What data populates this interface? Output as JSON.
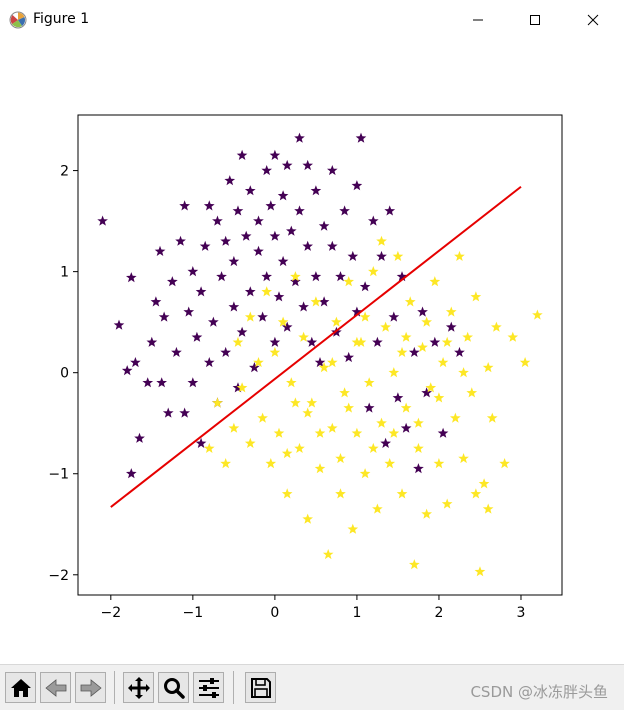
{
  "window": {
    "title": "Figure 1",
    "minimize_icon": "minimize-icon",
    "maximize_icon": "maximize-icon",
    "close_icon": "close-icon"
  },
  "toolbar": {
    "buttons": [
      {
        "name": "home-button",
        "icon": "home-icon"
      },
      {
        "name": "back-button",
        "icon": "back-arrow-icon"
      },
      {
        "name": "forward-button",
        "icon": "forward-arrow-icon"
      },
      {
        "name": "pan-button",
        "icon": "move-icon"
      },
      {
        "name": "zoom-button",
        "icon": "magnifier-icon"
      },
      {
        "name": "configure-subplots-button",
        "icon": "sliders-icon"
      },
      {
        "name": "save-button",
        "icon": "floppy-disk-icon"
      }
    ],
    "watermark": "CSDN @冰冻胖头鱼"
  },
  "chart_data": {
    "type": "scatter",
    "title": "",
    "xlabel": "",
    "ylabel": "",
    "xlim": [
      -2.4,
      3.5
    ],
    "ylim": [
      -2.2,
      2.55
    ],
    "xticks": [
      -2,
      -1,
      0,
      1,
      2,
      3
    ],
    "yticks": [
      -2,
      -1,
      0,
      1,
      2
    ],
    "grid": false,
    "legend": "none",
    "marker": "star",
    "colors": {
      "class0": "#440154",
      "class1": "#fde725",
      "line": "#e60000"
    },
    "boundary_line": {
      "x": [
        -2.0,
        3.0
      ],
      "y": [
        -1.33,
        1.84
      ]
    },
    "series": [
      {
        "class": 0,
        "points": [
          [
            -2.1,
            1.5
          ],
          [
            -1.75,
            0.94
          ],
          [
            -1.9,
            0.47
          ],
          [
            -1.8,
            0.02
          ],
          [
            -1.7,
            0.1
          ],
          [
            -1.65,
            -0.65
          ],
          [
            -1.75,
            -1.0
          ],
          [
            -1.55,
            -0.1
          ],
          [
            -1.5,
            0.3
          ],
          [
            -1.45,
            0.7
          ],
          [
            -1.4,
            1.2
          ],
          [
            -1.38,
            -0.1
          ],
          [
            -1.35,
            0.55
          ],
          [
            -1.3,
            -0.4
          ],
          [
            -1.25,
            0.9
          ],
          [
            -1.2,
            0.2
          ],
          [
            -1.15,
            1.3
          ],
          [
            -1.1,
            -0.4
          ],
          [
            -1.1,
            1.65
          ],
          [
            -1.05,
            0.6
          ],
          [
            -1.0,
            -0.1
          ],
          [
            -1.0,
            1.0
          ],
          [
            -0.95,
            0.35
          ],
          [
            -0.9,
            -0.7
          ],
          [
            -0.9,
            0.8
          ],
          [
            -0.85,
            1.25
          ],
          [
            -0.8,
            1.65
          ],
          [
            -0.8,
            0.1
          ],
          [
            -0.75,
            0.5
          ],
          [
            -0.7,
            1.5
          ],
          [
            -0.7,
            -0.3
          ],
          [
            -0.65,
            0.95
          ],
          [
            -0.6,
            0.2
          ],
          [
            -0.6,
            1.3
          ],
          [
            -0.55,
            1.9
          ],
          [
            -0.5,
            0.65
          ],
          [
            -0.5,
            1.1
          ],
          [
            -0.45,
            -0.15
          ],
          [
            -0.45,
            1.6
          ],
          [
            -0.4,
            0.4
          ],
          [
            -0.4,
            2.15
          ],
          [
            -0.35,
            1.35
          ],
          [
            -0.3,
            0.8
          ],
          [
            -0.3,
            1.8
          ],
          [
            -0.25,
            0.05
          ],
          [
            -0.2,
            1.2
          ],
          [
            -0.2,
            1.5
          ],
          [
            -0.15,
            0.55
          ],
          [
            -0.1,
            2.0
          ],
          [
            -0.1,
            0.95
          ],
          [
            -0.05,
            1.65
          ],
          [
            0.0,
            0.3
          ],
          [
            0.0,
            1.35
          ],
          [
            0.0,
            2.15
          ],
          [
            0.05,
            0.75
          ],
          [
            0.1,
            1.1
          ],
          [
            0.1,
            1.75
          ],
          [
            0.15,
            0.45
          ],
          [
            0.15,
            2.05
          ],
          [
            0.2,
            1.4
          ],
          [
            0.25,
            0.9
          ],
          [
            0.3,
            1.6
          ],
          [
            0.3,
            2.32
          ],
          [
            0.35,
            0.65
          ],
          [
            0.4,
            1.25
          ],
          [
            0.4,
            2.05
          ],
          [
            0.45,
            0.3
          ],
          [
            0.5,
            1.8
          ],
          [
            0.5,
            0.95
          ],
          [
            0.55,
            0.1
          ],
          [
            0.6,
            1.45
          ],
          [
            0.6,
            0.7
          ],
          [
            0.7,
            1.25
          ],
          [
            0.7,
            2.0
          ],
          [
            0.75,
            0.4
          ],
          [
            0.8,
            0.95
          ],
          [
            0.85,
            1.6
          ],
          [
            0.9,
            0.15
          ],
          [
            0.95,
            1.15
          ],
          [
            1.0,
            0.6
          ],
          [
            1.0,
            1.85
          ],
          [
            1.05,
            2.32
          ],
          [
            1.1,
            0.85
          ],
          [
            1.15,
            -0.35
          ],
          [
            1.2,
            1.5
          ],
          [
            1.25,
            0.3
          ],
          [
            1.3,
            1.15
          ],
          [
            1.35,
            -0.7
          ],
          [
            1.4,
            1.6
          ],
          [
            1.45,
            0.55
          ],
          [
            1.5,
            -0.25
          ],
          [
            1.55,
            0.95
          ],
          [
            1.6,
            -0.55
          ],
          [
            1.7,
            0.2
          ],
          [
            1.75,
            -0.95
          ],
          [
            1.8,
            0.6
          ],
          [
            1.85,
            -0.2
          ],
          [
            1.95,
            0.3
          ],
          [
            2.05,
            -0.6
          ],
          [
            2.15,
            0.45
          ],
          [
            2.25,
            0.2
          ]
        ]
      },
      {
        "class": 1,
        "points": [
          [
            -0.8,
            -0.75
          ],
          [
            -0.7,
            -0.3
          ],
          [
            -0.6,
            -0.9
          ],
          [
            -0.5,
            -0.55
          ],
          [
            -0.45,
            0.3
          ],
          [
            -0.4,
            -0.15
          ],
          [
            -0.3,
            0.55
          ],
          [
            -0.3,
            -0.7
          ],
          [
            -0.2,
            0.1
          ],
          [
            -0.15,
            -0.45
          ],
          [
            -0.1,
            0.8
          ],
          [
            -0.05,
            -0.9
          ],
          [
            0.0,
            0.2
          ],
          [
            0.05,
            -0.6
          ],
          [
            0.1,
            0.5
          ],
          [
            0.15,
            -1.2
          ],
          [
            0.2,
            -0.1
          ],
          [
            0.25,
            0.95
          ],
          [
            0.3,
            -0.75
          ],
          [
            0.35,
            0.35
          ],
          [
            0.4,
            -1.45
          ],
          [
            0.45,
            -0.3
          ],
          [
            0.5,
            0.7
          ],
          [
            0.55,
            -0.95
          ],
          [
            0.6,
            0.05
          ],
          [
            0.65,
            -1.8
          ],
          [
            0.7,
            -0.55
          ],
          [
            0.75,
            0.5
          ],
          [
            0.8,
            -1.2
          ],
          [
            0.85,
            -0.2
          ],
          [
            0.9,
            0.9
          ],
          [
            0.95,
            -1.55
          ],
          [
            1.0,
            -0.6
          ],
          [
            1.05,
            0.3
          ],
          [
            1.1,
            -1.0
          ],
          [
            1.15,
            -0.1
          ],
          [
            1.2,
            1.0
          ],
          [
            1.25,
            -1.35
          ],
          [
            1.3,
            -0.5
          ],
          [
            1.35,
            0.45
          ],
          [
            1.4,
            -0.9
          ],
          [
            1.45,
            0.0
          ],
          [
            1.5,
            1.15
          ],
          [
            1.55,
            -1.2
          ],
          [
            1.6,
            -0.35
          ],
          [
            1.65,
            0.7
          ],
          [
            1.7,
            -1.9
          ],
          [
            1.75,
            -0.75
          ],
          [
            1.8,
            0.25
          ],
          [
            1.85,
            -1.4
          ],
          [
            1.9,
            -0.15
          ],
          [
            1.95,
            0.9
          ],
          [
            2.0,
            -0.9
          ],
          [
            2.05,
            0.1
          ],
          [
            2.1,
            -1.3
          ],
          [
            2.15,
            0.6
          ],
          [
            2.2,
            -0.45
          ],
          [
            2.25,
            1.15
          ],
          [
            2.3,
            -0.85
          ],
          [
            2.35,
            0.35
          ],
          [
            2.4,
            -0.2
          ],
          [
            2.45,
            0.75
          ],
          [
            2.5,
            -1.97
          ],
          [
            2.55,
            -1.1
          ],
          [
            2.6,
            0.05
          ],
          [
            2.65,
            -0.45
          ],
          [
            2.7,
            0.45
          ],
          [
            2.8,
            -0.9
          ],
          [
            2.9,
            0.35
          ],
          [
            3.05,
            0.1
          ],
          [
            3.2,
            0.57
          ],
          [
            1.3,
            1.3
          ],
          [
            1.0,
            0.3
          ],
          [
            0.7,
            0.1
          ],
          [
            0.4,
            -0.4
          ],
          [
            1.6,
            0.35
          ],
          [
            2.0,
            -0.25
          ],
          [
            1.2,
            -0.75
          ],
          [
            0.9,
            -0.35
          ],
          [
            1.75,
            -0.5
          ],
          [
            2.3,
            0.0
          ],
          [
            1.45,
            -0.6
          ],
          [
            0.55,
            -0.6
          ],
          [
            1.85,
            0.5
          ],
          [
            2.1,
            0.3
          ],
          [
            1.1,
            0.55
          ],
          [
            0.25,
            -0.3
          ],
          [
            0.8,
            -0.85
          ],
          [
            1.55,
            0.2
          ],
          [
            2.6,
            -1.35
          ],
          [
            2.45,
            -1.2
          ],
          [
            0.15,
            -0.8
          ]
        ]
      }
    ]
  }
}
